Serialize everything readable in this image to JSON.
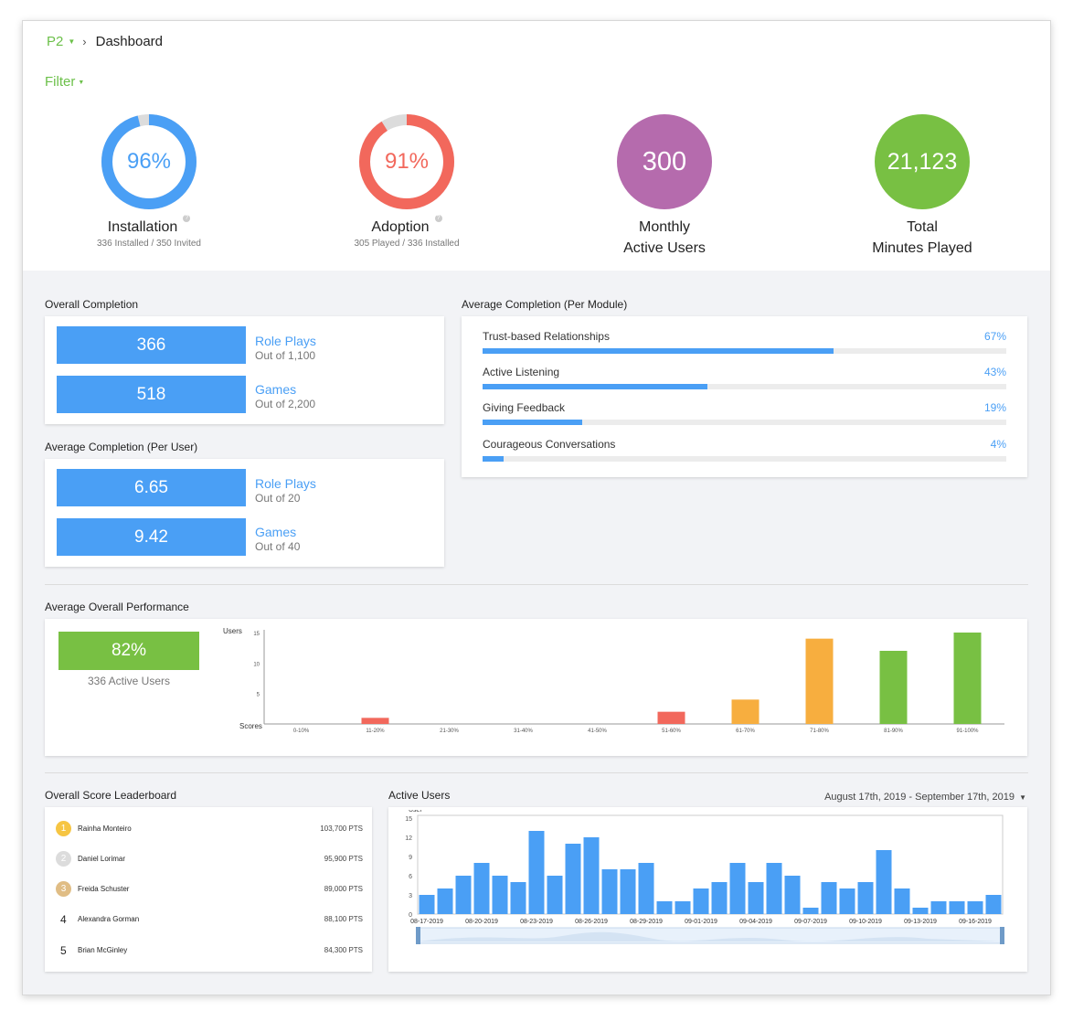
{
  "breadcrumb": {
    "app": "P2",
    "page": "Dashboard"
  },
  "filter": {
    "label": "Filter"
  },
  "kpis": [
    {
      "value": "96%",
      "percent": 96,
      "label": "Installation",
      "sub": "336 Installed / 350 Invited",
      "color": "#4a9ff5"
    },
    {
      "value": "91%",
      "percent": 91,
      "label": "Adoption",
      "sub": "305 Played / 336 Installed",
      "color": "#f2685c"
    },
    {
      "value": "300",
      "label1": "Monthly",
      "label2": "Active Users",
      "color": "#b56bad"
    },
    {
      "value": "21,123",
      "label1": "Total",
      "label2": "Minutes Played",
      "color": "#78c043"
    }
  ],
  "overall_completion": {
    "title": "Overall Completion",
    "rows": [
      {
        "value": "366",
        "label": "Role Plays",
        "sub": "Out of 1,100"
      },
      {
        "value": "518",
        "label": "Games",
        "sub": "Out of 2,200"
      }
    ]
  },
  "per_user": {
    "title": "Average Completion (Per User)",
    "rows": [
      {
        "value": "6.65",
        "label": "Role Plays",
        "sub": "Out of 20"
      },
      {
        "value": "9.42",
        "label": "Games",
        "sub": "Out of 40"
      }
    ]
  },
  "per_module": {
    "title": "Average Completion (Per Module)",
    "rows": [
      {
        "name": "Trust-based Relationships",
        "pct_label": "67%",
        "pct": 67
      },
      {
        "name": "Active Listening",
        "pct_label": "43%",
        "pct": 43
      },
      {
        "name": "Giving Feedback",
        "pct_label": "19%",
        "pct": 19
      },
      {
        "name": "Courageous Conversations",
        "pct_label": "4%",
        "pct": 4
      }
    ]
  },
  "performance": {
    "title": "Average Overall Performance",
    "badge": "82%",
    "active_users": "336 Active Users"
  },
  "leaderboard": {
    "title": "Overall Score Leaderboard",
    "rows": [
      {
        "rank": "1",
        "name": "Rainha Monteiro",
        "pts": "103,700 PTS",
        "medal": "#f6c543"
      },
      {
        "rank": "2",
        "name": "Daniel Lorimar",
        "pts": "95,900 PTS",
        "medal": "#dcdcdc"
      },
      {
        "rank": "3",
        "name": "Freida Schuster",
        "pts": "89,000 PTS",
        "medal": "#e0bd85"
      },
      {
        "rank": "4",
        "name": "Alexandra Gorman",
        "pts": "88,100 PTS"
      },
      {
        "rank": "5",
        "name": "Brian McGinley",
        "pts": "84,300 PTS"
      }
    ]
  },
  "active_users": {
    "title": "Active Users",
    "date_range": "August 17th, 2019 - September 17th, 2019"
  },
  "chart_data": [
    {
      "type": "bar",
      "ylabel": "Users",
      "xlabel": "Scores",
      "ylim": [
        0,
        15
      ],
      "yticks": [
        5,
        10,
        15
      ],
      "categories": [
        "0-10%",
        "11-20%",
        "21-30%",
        "31-40%",
        "41-50%",
        "51-60%",
        "61-70%",
        "71-80%",
        "81-90%",
        "91-100%"
      ],
      "values": [
        0,
        1,
        0,
        0,
        0,
        2,
        4,
        14,
        12,
        15
      ],
      "colors": [
        "#f2685c",
        "#f2685c",
        "#f2685c",
        "#f2685c",
        "#f2685c",
        "#f2685c",
        "#f7ae3f",
        "#f7ae3f",
        "#78c043",
        "#78c043"
      ],
      "grid": false
    },
    {
      "type": "bar",
      "ylabel": "User",
      "ylim": [
        0,
        15
      ],
      "yticks": [
        0,
        3,
        6,
        9,
        12,
        15
      ],
      "x": [
        "08-17-2019",
        "08-18-2019",
        "08-19-2019",
        "08-20-2019",
        "08-21-2019",
        "08-22-2019",
        "08-23-2019",
        "08-24-2019",
        "08-25-2019",
        "08-26-2019",
        "08-27-2019",
        "08-28-2019",
        "08-29-2019",
        "08-30-2019",
        "08-31-2019",
        "09-01-2019",
        "09-02-2019",
        "09-03-2019",
        "09-04-2019",
        "09-05-2019",
        "09-06-2019",
        "09-07-2019",
        "09-08-2019",
        "09-09-2019",
        "09-10-2019",
        "09-11-2019",
        "09-12-2019",
        "09-13-2019",
        "09-14-2019",
        "09-15-2019",
        "09-16-2019",
        "09-17-2019"
      ],
      "xticks": [
        "08-17-2019",
        "08-20-2019",
        "08-23-2019",
        "08-26-2019",
        "08-29-2019",
        "09-01-2019",
        "09-04-2019",
        "09-07-2019",
        "09-10-2019",
        "09-13-2019",
        "09-16-2019"
      ],
      "values": [
        3,
        4,
        6,
        8,
        6,
        5,
        13,
        6,
        11,
        12,
        7,
        7,
        8,
        2,
        2,
        4,
        5,
        8,
        5,
        8,
        6,
        1,
        5,
        4,
        5,
        10,
        4,
        1,
        2,
        2,
        2,
        3
      ],
      "color": "#4a9ff5",
      "grid": false
    }
  ]
}
